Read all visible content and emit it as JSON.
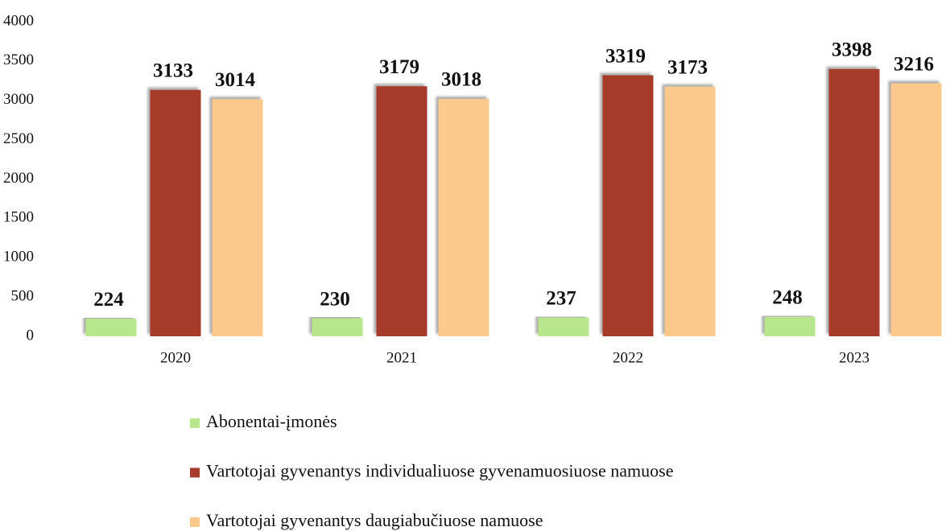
{
  "chart_data": {
    "type": "bar",
    "categories": [
      "2020",
      "2021",
      "2022",
      "2023"
    ],
    "series": [
      {
        "name": "Abonentai-įmonės",
        "color": "#b8e68c",
        "values": [
          224,
          230,
          237,
          248
        ]
      },
      {
        "name": "Vartotojai gyvenantys individualiuose gyvenamuosiuose namuose",
        "color": "#a63a2c",
        "values": [
          3133,
          3179,
          3319,
          3398
        ]
      },
      {
        "name": "Vartotojai gyvenantys daugiabučiuose namuose",
        "color": "#fcc98c",
        "values": [
          3014,
          3018,
          3173,
          3216
        ]
      }
    ],
    "ylim": [
      0,
      4000
    ],
    "yticks": [
      0,
      500,
      1000,
      1500,
      2000,
      2500,
      3000,
      3500,
      4000
    ],
    "grid": false,
    "legend": "bottom"
  }
}
